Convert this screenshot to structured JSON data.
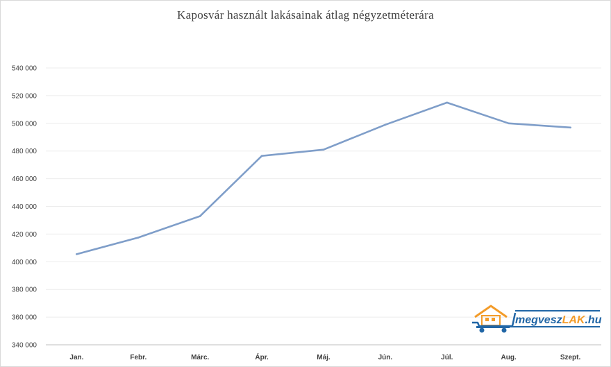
{
  "chart_data": {
    "type": "line",
    "title": "Kaposvár használt lakásainak átlag négyzetméterára",
    "categories": [
      "Jan.",
      "Febr.",
      "Márc.",
      "Ápr.",
      "Máj.",
      "Jún.",
      "Júl.",
      "Aug.",
      "Szept."
    ],
    "series": [
      {
        "values": [
          405500,
          417500,
          433000,
          476500,
          481000,
          499000,
          515000,
          500000,
          497000
        ]
      }
    ],
    "ylim": [
      340000,
      540000
    ],
    "yticks": [
      340000,
      360000,
      380000,
      400000,
      420000,
      440000,
      460000,
      480000,
      500000,
      520000,
      540000
    ],
    "ytick_labels": [
      "340 000",
      "360 000",
      "380 000",
      "400 000",
      "420 000",
      "440 000",
      "460 000",
      "480 000",
      "500 000",
      "520 000",
      "540 000"
    ],
    "grid": true,
    "legend": "none",
    "colors": {
      "line": "#7f9ec9",
      "grid": "#ececec",
      "axis": "#bfbfbf",
      "text": "#404040"
    }
  },
  "logo": {
    "text_main": "megvesz",
    "text_accent": "LAK",
    "text_suffix": ".hu",
    "icon": "house-on-cart-icon",
    "colors": {
      "blue": "#2166a6",
      "orange": "#f39c2a"
    }
  }
}
